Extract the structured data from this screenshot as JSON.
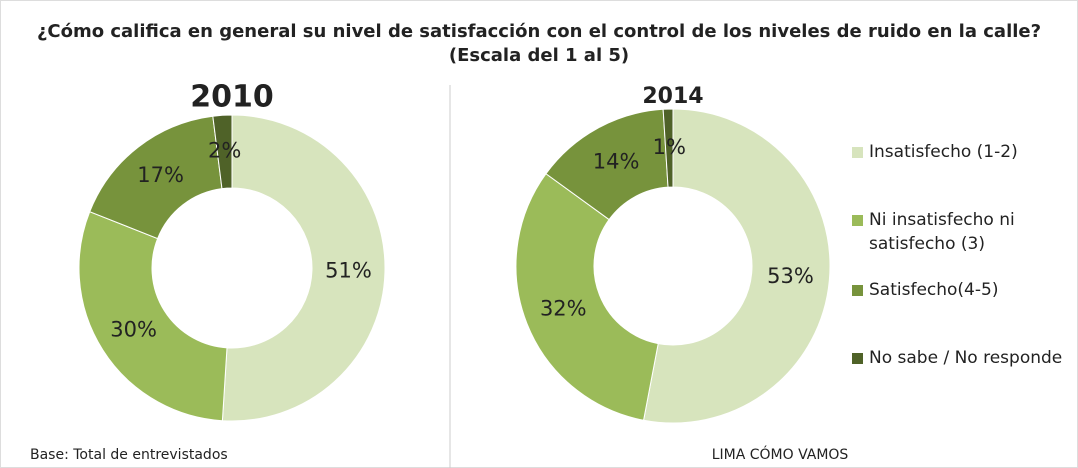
{
  "chart_data": {
    "type": "donut",
    "title": "¿Cómo califica en general su nivel de satisfacción con el control de los niveles de ruido en la calle?",
    "subtitle": "(Escala del 1 al 5)",
    "categories": [
      "Insatisfecho (1-2)",
      "Ni insatisfecho ni satisfecho (3)",
      "Satisfecho(4-5)",
      "No sabe / No responde"
    ],
    "colors": [
      "#d7e4bd",
      "#9bbb59",
      "#77933c",
      "#4f6228"
    ],
    "legend": "right",
    "series": [
      {
        "name": "2010",
        "values": [
          51,
          30,
          17,
          2
        ],
        "value_labels": [
          "51%",
          "30%",
          "17%",
          "2%"
        ]
      },
      {
        "name": "2014",
        "values": [
          53,
          32,
          14,
          1
        ],
        "value_labels": [
          "53%",
          "32%",
          "14%",
          "1%"
        ]
      }
    ],
    "footnote": "Base: Total de entrevistados",
    "source": "LIMA CÓMO VAMOS"
  }
}
